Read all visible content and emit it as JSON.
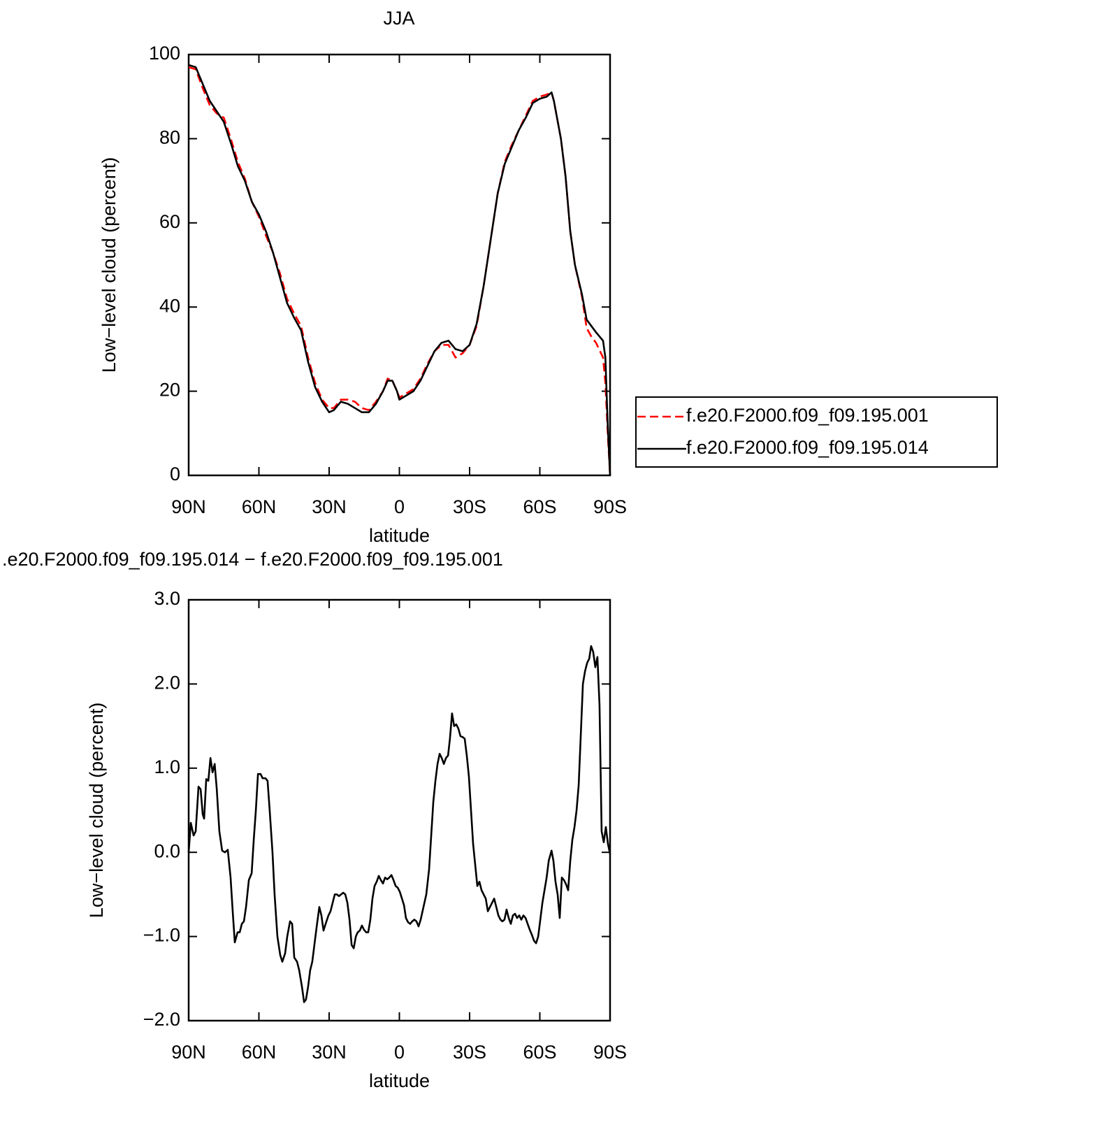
{
  "chart_data": [
    {
      "type": "line",
      "title": "JJA",
      "xlabel": "latitude",
      "ylabel": "Low−level cloud (percent)",
      "x": [
        90,
        87,
        84,
        81,
        78,
        75,
        72,
        69,
        66,
        63,
        60,
        57,
        54,
        51,
        48,
        45,
        42,
        39,
        36,
        33,
        30,
        28,
        25,
        22,
        19,
        16,
        13,
        10,
        7,
        5,
        3,
        1,
        0,
        -3,
        -6,
        -9,
        -12,
        -15,
        -18,
        -21,
        -24,
        -27,
        -30,
        -33,
        -36,
        -39,
        -42,
        -45,
        -48,
        -51,
        -54,
        -57,
        -60,
        -63,
        -65,
        -66,
        -69,
        -71,
        -73,
        -75,
        -78,
        -80,
        -82,
        -84,
        -87,
        -88,
        -89,
        -90
      ],
      "series": [
        {
          "name": "f.e20.F2000.f09_f09.195.001",
          "color": "#ff0000",
          "dash": "dashed",
          "values": [
            97,
            96.5,
            92,
            88,
            86,
            85,
            80,
            74.5,
            70.5,
            65,
            61.5,
            57,
            53,
            48,
            42,
            38.5,
            35.5,
            28,
            22,
            18,
            16,
            16,
            18,
            18,
            17.5,
            16,
            15.5,
            17.5,
            20,
            23,
            22.5,
            20,
            18.5,
            19.5,
            20.5,
            23,
            26.5,
            29.5,
            31,
            31,
            28,
            29,
            31,
            35.5,
            45,
            56,
            67,
            74.5,
            78.5,
            82,
            85.5,
            89,
            90,
            90.5,
            91,
            89,
            80,
            71,
            58,
            50,
            42.5,
            35,
            33,
            31.5,
            28,
            22,
            10,
            0
          ]
        },
        {
          "name": "f.e20.F2000.f09_f09.195.014",
          "color": "#000000",
          "dash": "solid",
          "values": [
            97.5,
            97,
            93,
            89,
            86.5,
            84,
            79,
            73.5,
            70,
            65,
            62,
            58,
            53,
            47,
            41,
            37.5,
            34.5,
            27,
            21,
            17.5,
            15,
            15.5,
            17.5,
            17,
            16,
            15,
            15,
            17,
            20,
            22.5,
            22.5,
            20,
            18,
            19,
            20,
            22.5,
            26,
            29.5,
            31.5,
            32,
            30,
            29.5,
            31,
            36,
            45,
            56,
            67,
            74,
            78,
            82,
            85,
            88.5,
            89.5,
            90,
            91,
            89,
            80,
            71,
            58,
            50,
            43,
            37,
            35.5,
            34,
            32,
            28,
            12,
            0
          ]
        }
      ],
      "xlim": [
        90,
        -90
      ],
      "xticks": [
        {
          "value": 90,
          "label": "90N"
        },
        {
          "value": 60,
          "label": "60N"
        },
        {
          "value": 30,
          "label": "30N"
        },
        0,
        {
          "value": -30,
          "label": "30S"
        },
        {
          "value": -60,
          "label": "60S"
        },
        {
          "value": -90,
          "label": "90S"
        }
      ],
      "ylim": [
        0,
        100
      ],
      "yticks": [
        0,
        20,
        40,
        60,
        80,
        100
      ],
      "legend": "right"
    },
    {
      "type": "line",
      "title": ".e20.F2000.f09_f09.195.014 − f.e20.F2000.f09_f09.195.001",
      "xlabel": "latitude",
      "ylabel": "Low−level cloud (percent)",
      "color": "#000000",
      "x": [
        90,
        89.1,
        87.9,
        87,
        85.8,
        84.9,
        84,
        83.4,
        82.5,
        81.6,
        80.7,
        79.8,
        78.9,
        78,
        76.9,
        75.7,
        74.5,
        73.3,
        72.1,
        71.2,
        70.3,
        69.1,
        68.2,
        67.3,
        66.4,
        65.5,
        64.3,
        63.1,
        62.2,
        61.3,
        60.4,
        59.3,
        58.4,
        57.2,
        56.3,
        55.4,
        54.2,
        53.3,
        52.1,
        50.9,
        50,
        48.8,
        47.9,
        46.7,
        45.8,
        44.9,
        43.7,
        42.8,
        41.6,
        40.7,
        39.9,
        39,
        38.1,
        37.2,
        36.3,
        35.4,
        34.2,
        33.3,
        32.4,
        31.5,
        30.3,
        29.4,
        28.5,
        27.6,
        26.7,
        25.8,
        24.9,
        24,
        23.1,
        22.2,
        21.3,
        20.4,
        19.5,
        18.6,
        17.8,
        16.9,
        16,
        15.1,
        14.2,
        13.3,
        12.4,
        11.5,
        10.6,
        9.7,
        8.8,
        7.9,
        7,
        6.1,
        5.2,
        4.3,
        3.4,
        2.5,
        1.6,
        0.7,
        -0.2,
        -1.1,
        -2,
        -2.8,
        -3.7,
        -4.6,
        -5.5,
        -6.4,
        -7.3,
        -8.2,
        -9.1,
        -10.3,
        -11.5,
        -12.7,
        -13.6,
        -14.5,
        -15.4,
        -16.3,
        -17.2,
        -18.1,
        -19,
        -19.9,
        -20.8,
        -21.6,
        -22.5,
        -23.4,
        -24.3,
        -25.2,
        -26.1,
        -27,
        -27.9,
        -28.8,
        -29.7,
        -30.6,
        -31.5,
        -32.4,
        -33.3,
        -34.2,
        -35.1,
        -36,
        -36.9,
        -37.8,
        -38.7,
        -39.6,
        -40.5,
        -41.4,
        -42.3,
        -43.2,
        -44,
        -44.9,
        -45.8,
        -46.7,
        -47.6,
        -48.5,
        -49.4,
        -50.3,
        -51.2,
        -52.1,
        -53,
        -53.9,
        -54.8,
        -55.7,
        -56.6,
        -57.5,
        -58.4,
        -59.3,
        -60.2,
        -61.1,
        -62,
        -62.9,
        -63.8,
        -65,
        -65.8,
        -66.7,
        -67.6,
        -68.5,
        -69.4,
        -70.3,
        -71.2,
        -72.1,
        -73,
        -73.9,
        -74.8,
        -75.7,
        -76.6,
        -77.5,
        -78.4,
        -79.3,
        -80.2,
        -81.1,
        -81.9,
        -82.8,
        -83.7,
        -84.6,
        -85.5,
        -86.4,
        -87.3,
        -88.2,
        -89.1,
        -90
      ],
      "values": [
        0,
        0.35,
        0.2,
        0.25,
        0.78,
        0.75,
        0.45,
        0.4,
        0.87,
        0.85,
        1.12,
        0.95,
        1.05,
        0.75,
        0.25,
        0.02,
        0,
        0.03,
        -0.3,
        -0.7,
        -1.07,
        -0.95,
        -0.95,
        -0.85,
        -0.82,
        -0.65,
        -0.33,
        -0.25,
        0.15,
        0.5,
        0.93,
        0.93,
        0.88,
        0.88,
        0.85,
        0.5,
        0,
        -0.5,
        -1,
        -1.22,
        -1.3,
        -1.2,
        -1,
        -0.82,
        -0.85,
        -1.25,
        -1.3,
        -1.4,
        -1.6,
        -1.78,
        -1.75,
        -1.6,
        -1.4,
        -1.3,
        -1.1,
        -0.9,
        -0.65,
        -0.75,
        -0.93,
        -0.85,
        -0.75,
        -0.7,
        -0.6,
        -0.5,
        -0.5,
        -0.52,
        -0.5,
        -0.48,
        -0.5,
        -0.6,
        -0.8,
        -1.1,
        -1.14,
        -1,
        -0.95,
        -0.93,
        -0.87,
        -0.92,
        -0.95,
        -0.95,
        -0.8,
        -0.55,
        -0.4,
        -0.35,
        -0.28,
        -0.33,
        -0.37,
        -0.3,
        -0.32,
        -0.3,
        -0.27,
        -0.33,
        -0.4,
        -0.42,
        -0.47,
        -0.55,
        -0.63,
        -0.78,
        -0.83,
        -0.85,
        -0.82,
        -0.8,
        -0.82,
        -0.88,
        -0.8,
        -0.65,
        -0.5,
        -0.2,
        0.2,
        0.6,
        0.85,
        1.05,
        1.17,
        1.12,
        1.05,
        1.12,
        1.15,
        1.35,
        1.65,
        1.5,
        1.52,
        1.47,
        1.38,
        1.37,
        1.35,
        1.15,
        0.9,
        0.5,
        0.1,
        -0.15,
        -0.4,
        -0.35,
        -0.45,
        -0.5,
        -0.55,
        -0.7,
        -0.65,
        -0.6,
        -0.55,
        -0.65,
        -0.75,
        -0.8,
        -0.82,
        -0.8,
        -0.68,
        -0.78,
        -0.85,
        -0.75,
        -0.73,
        -0.78,
        -0.75,
        -0.8,
        -0.75,
        -0.78,
        -0.85,
        -0.92,
        -0.98,
        -1.05,
        -1.08,
        -1,
        -0.8,
        -0.6,
        -0.45,
        -0.3,
        -0.1,
        0.02,
        -0.1,
        -0.35,
        -0.5,
        -0.78,
        -0.3,
        -0.33,
        -0.38,
        -0.45,
        -0.1,
        0.15,
        0.3,
        0.5,
        0.8,
        1.4,
        2,
        2.15,
        2.25,
        2.3,
        2.45,
        2.38,
        2.2,
        2.32,
        1.75,
        0.25,
        0.12,
        0.3,
        0.1,
        -0.02
      ],
      "xlim": [
        90,
        -90
      ],
      "xticks": [
        {
          "value": 90,
          "label": "90N"
        },
        {
          "value": 60,
          "label": "60N"
        },
        {
          "value": 30,
          "label": "30N"
        },
        0,
        {
          "value": -30,
          "label": "30S"
        },
        {
          "value": -60,
          "label": "60S"
        },
        {
          "value": -90,
          "label": "90S"
        }
      ],
      "ylim": [
        -2,
        3
      ],
      "yticks": [
        {
          "value": 3,
          "label": "3.0"
        },
        {
          "value": 2,
          "label": "2.0"
        },
        {
          "value": 1,
          "label": "1.0"
        },
        {
          "value": 0,
          "label": "0.0"
        },
        {
          "value": -1,
          "label": "−1.0"
        },
        {
          "value": -2,
          "label": "−2.0"
        }
      ]
    }
  ]
}
